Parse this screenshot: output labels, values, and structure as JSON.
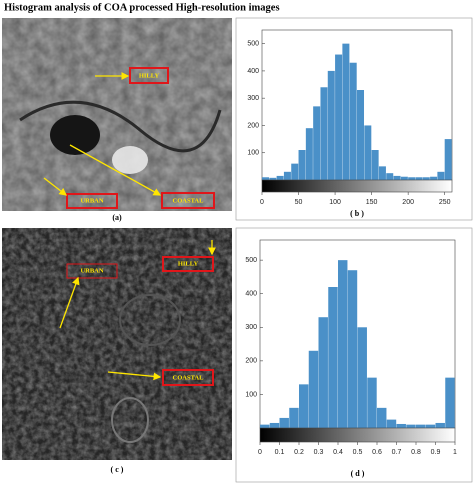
{
  "title": "Histogram analysis of COA processed High-resolution images",
  "panels": [
    {
      "caption": "(a)",
      "labels": [
        "HILLY",
        "URBAN",
        "COASTAL"
      ]
    },
    {
      "caption": "( c )",
      "labels": [
        "URBAN",
        "HILLY",
        "COASTAL"
      ]
    }
  ],
  "chart_data": [
    {
      "type": "histogram",
      "caption": "( b )",
      "color": "#4a90c8",
      "bins": [
        0,
        10,
        20,
        30,
        40,
        50,
        60,
        70,
        80,
        90,
        100,
        110,
        120,
        130,
        140,
        150,
        160,
        170,
        180,
        190,
        200,
        210,
        220,
        230,
        240,
        250,
        260
      ],
      "values": [
        10,
        8,
        15,
        30,
        60,
        110,
        190,
        270,
        340,
        400,
        460,
        500,
        430,
        330,
        200,
        110,
        50,
        25,
        15,
        12,
        10,
        10,
        10,
        12,
        30,
        150
      ],
      "xlim": [
        0,
        260
      ],
      "xticks": [
        0,
        50,
        100,
        150,
        200,
        250
      ],
      "ylim": [
        0,
        550
      ],
      "yticks": [
        100,
        200,
        300,
        400,
        500
      ]
    },
    {
      "type": "histogram",
      "caption": "( d )",
      "color": "#4a90c8",
      "bins": [
        0,
        0.05,
        0.1,
        0.15,
        0.2,
        0.25,
        0.3,
        0.35,
        0.4,
        0.45,
        0.5,
        0.55,
        0.6,
        0.65,
        0.7,
        0.75,
        0.8,
        0.85,
        0.9,
        0.95,
        1
      ],
      "values": [
        10,
        15,
        30,
        60,
        130,
        230,
        330,
        420,
        500,
        470,
        300,
        150,
        60,
        25,
        12,
        10,
        10,
        10,
        15,
        150
      ],
      "xlim": [
        0,
        1
      ],
      "xticks": [
        0,
        0.1,
        0.2,
        0.3,
        0.4,
        0.5,
        0.6,
        0.7,
        0.8,
        0.9,
        1
      ],
      "ylim": [
        0,
        560
      ],
      "yticks": [
        100,
        200,
        300,
        400,
        500
      ]
    }
  ]
}
